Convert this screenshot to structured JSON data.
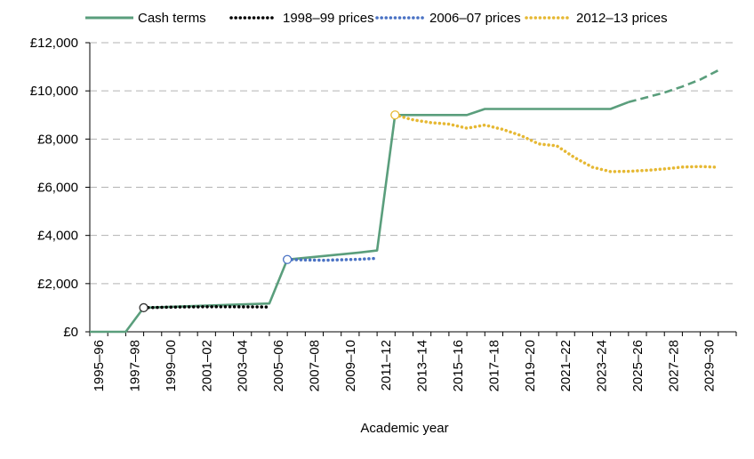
{
  "chart_data": {
    "type": "line",
    "title": "",
    "xlabel": "Academic year",
    "ylabel": "",
    "ylim": [
      0,
      12000
    ],
    "y_ticks": [
      0,
      2000,
      4000,
      6000,
      8000,
      10000,
      12000
    ],
    "y_tick_labels": [
      "£0",
      "£2,000",
      "£4,000",
      "£6,000",
      "£8,000",
      "£10,000",
      "£12,000"
    ],
    "x_tick_labels": [
      "1995–96",
      "1997–98",
      "1999–00",
      "2001–02",
      "2003–04",
      "2005–06",
      "2007–08",
      "2009–10",
      "2011–12",
      "2013–14",
      "2015–16",
      "2017–18",
      "2019–20",
      "2021–22",
      "2023–24",
      "2025–26",
      "2027–28",
      "2029–30"
    ],
    "x_start_year": 1995,
    "x_end_year": 2030,
    "grid": true,
    "legend_position": "top",
    "series": [
      {
        "name": "Cash terms",
        "color": "#5a9e7c",
        "style": "solid",
        "points": [
          [
            1995,
            0
          ],
          [
            1997,
            0
          ],
          [
            1998,
            1000
          ],
          [
            2005,
            1175
          ],
          [
            2006,
            3000
          ],
          [
            2010,
            3290
          ],
          [
            2011,
            3375
          ],
          [
            2012,
            9000
          ],
          [
            2016,
            9000
          ],
          [
            2017,
            9250
          ],
          [
            2024,
            9250
          ],
          [
            2025,
            9535
          ]
        ],
        "projection_style": "dashed",
        "projection_points": [
          [
            2025,
            9535
          ],
          [
            2026,
            9730
          ],
          [
            2027,
            9930
          ],
          [
            2028,
            10180
          ],
          [
            2029,
            10470
          ],
          [
            2030,
            10850
          ]
        ]
      },
      {
        "name": "1998–99 prices",
        "color": "#000000",
        "style": "dotted",
        "points": [
          [
            1998,
            1000
          ],
          [
            2000,
            1030
          ],
          [
            2002,
            1040
          ],
          [
            2004,
            1035
          ],
          [
            2005,
            1030
          ]
        ]
      },
      {
        "name": "2006–07 prices",
        "color": "#4a72c4",
        "style": "dotted",
        "points": [
          [
            2006,
            3000
          ],
          [
            2008,
            2970
          ],
          [
            2010,
            3010
          ],
          [
            2011,
            3050
          ]
        ]
      },
      {
        "name": "2012–13 prices",
        "color": "#e6b833",
        "style": "dotted",
        "points": [
          [
            2012,
            9000
          ],
          [
            2013,
            8800
          ],
          [
            2014,
            8680
          ],
          [
            2015,
            8620
          ],
          [
            2016,
            8450
          ],
          [
            2017,
            8580
          ],
          [
            2018,
            8400
          ],
          [
            2019,
            8150
          ],
          [
            2020,
            7800
          ],
          [
            2021,
            7720
          ],
          [
            2022,
            7230
          ],
          [
            2023,
            6830
          ],
          [
            2024,
            6650
          ],
          [
            2025,
            6660
          ],
          [
            2026,
            6700
          ],
          [
            2027,
            6760
          ],
          [
            2028,
            6840
          ],
          [
            2029,
            6860
          ],
          [
            2030,
            6830
          ]
        ]
      }
    ],
    "markers": [
      {
        "x": 1998,
        "y": 1000,
        "color": "#333333"
      },
      {
        "x": 2006,
        "y": 3000,
        "color": "#4a72c4"
      },
      {
        "x": 2012,
        "y": 9000,
        "color": "#e6b833"
      }
    ]
  }
}
